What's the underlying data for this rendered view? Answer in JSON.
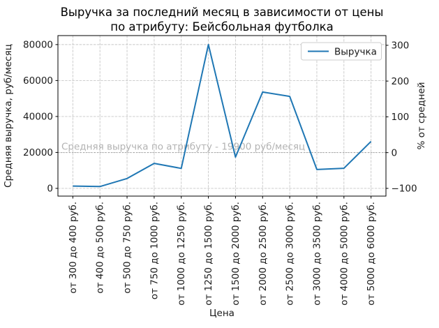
{
  "title": {
    "line1": "Выручка за последний месяц в зависимости от цены",
    "line2": "по атрибуту: Бейсбольная футболка"
  },
  "legend": {
    "label": "Выручка"
  },
  "axes": {
    "x_label": "Цена",
    "y_left_label": "Средняя выручка, руб/месяц",
    "y_right_label": "% от средней"
  },
  "annotation": {
    "text": "Средняя выручка по атрибуту - 19900 руб/месяц",
    "value": 19900
  },
  "colors": {
    "line": "#1f77b4",
    "grid": "#c7c7c7",
    "average_line": "#999999",
    "annotation_text": "#b3b3b3",
    "spine": "#000000",
    "legend_border": "#cccccc"
  },
  "chart_data": {
    "type": "line",
    "title": "Выручка за последний месяц в зависимости от цены по атрибуту: Бейсбольная футболка",
    "categories": [
      "от 300 до 400 руб.",
      "от 400 до 500 руб.",
      "от 500 до 750 руб.",
      "от 750 до 1000 руб.",
      "от 1000 до 1250 руб.",
      "от 1250 до 1500 руб.",
      "от 1500 до 2000 руб.",
      "от 2000 до 2500 руб.",
      "от 2500 до 3000 руб.",
      "от 3000 до 3500 руб.",
      "от 4000 до 5000 руб.",
      "от 5000 до 6000 руб."
    ],
    "series": [
      {
        "name": "Выручка",
        "values": [
          1300,
          1000,
          5500,
          13900,
          11100,
          80000,
          17400,
          53600,
          51200,
          10500,
          11200,
          26100
        ]
      }
    ],
    "average_line": {
      "value": 19900,
      "label": "Средняя выручка по атрибуту - 19900 руб/месяц"
    },
    "xlabel": "Цена",
    "ylabel_left": "Средняя выручка, руб/месяц",
    "ylabel_right": "% от средней",
    "y_left_ticks": [
      0,
      20000,
      40000,
      60000,
      80000
    ],
    "y_right_ticks_percent": [
      -100,
      0,
      100,
      200,
      300
    ],
    "ylim_left": [
      -4300,
      85000
    ],
    "grid": true,
    "grid_style": "dashed",
    "legend_position": "upper right",
    "x_tick_rotation": 90
  }
}
